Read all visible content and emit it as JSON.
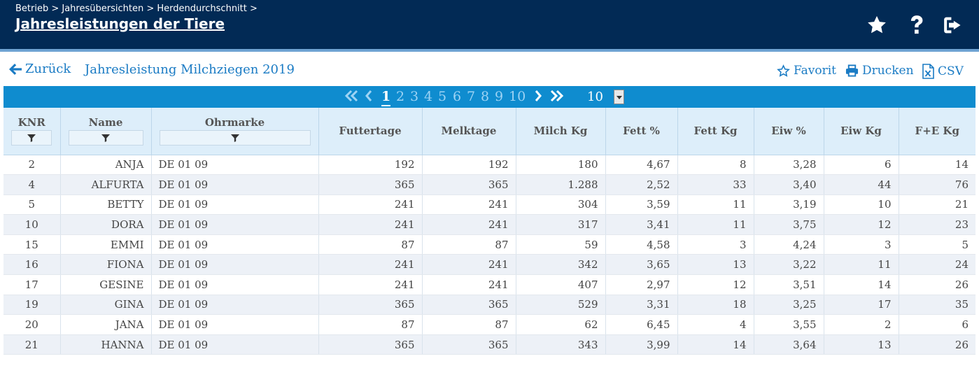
{
  "header": {
    "breadcrumb": "Betrieb > Jahresübersichten > Herdendurchschnitt >",
    "title": "Jahresleistungen der Tiere",
    "icons": [
      "star-icon",
      "question-icon",
      "logout-icon"
    ]
  },
  "actions": {
    "back_label": "Zurück",
    "subtitle": "Jahresleistung Milchziegen 2019",
    "favorite_label": "Favorit",
    "print_label": "Drucken",
    "csv_label": "CSV"
  },
  "pager": {
    "pages": [
      "1",
      "2",
      "3",
      "4",
      "5",
      "6",
      "7",
      "8",
      "9",
      "10"
    ],
    "current": "1",
    "page_size": "10"
  },
  "table": {
    "columns": [
      "KNR",
      "Name",
      "Ohrmarke",
      "Futtertage",
      "Melktage",
      "Milch Kg",
      "Fett %",
      "Fett Kg",
      "Eiw %",
      "Eiw Kg",
      "F+E Kg"
    ],
    "rows": [
      [
        "2",
        "ANJA",
        "DE 01 09",
        "192",
        "192",
        "180",
        "4,67",
        "8",
        "3,28",
        "6",
        "14"
      ],
      [
        "4",
        "ALFURTA",
        "DE 01 09",
        "365",
        "365",
        "1.288",
        "2,52",
        "33",
        "3,40",
        "44",
        "76"
      ],
      [
        "5",
        "BETTY",
        "DE 01 09",
        "241",
        "241",
        "304",
        "3,59",
        "11",
        "3,19",
        "10",
        "21"
      ],
      [
        "10",
        "DORA",
        "DE 01 09",
        "241",
        "241",
        "317",
        "3,41",
        "11",
        "3,75",
        "12",
        "23"
      ],
      [
        "15",
        "EMMI",
        "DE 01 09",
        "87",
        "87",
        "59",
        "4,58",
        "3",
        "4,24",
        "3",
        "5"
      ],
      [
        "16",
        "FIONA",
        "DE 01 09",
        "241",
        "241",
        "342",
        "3,65",
        "13",
        "3,22",
        "11",
        "24"
      ],
      [
        "17",
        "GESINE",
        "DE 01 09",
        "241",
        "241",
        "407",
        "2,97",
        "12",
        "3,51",
        "14",
        "26"
      ],
      [
        "19",
        "GINA",
        "DE 01 09",
        "365",
        "365",
        "529",
        "3,31",
        "18",
        "3,25",
        "17",
        "35"
      ],
      [
        "20",
        "JANA",
        "DE 01 09",
        "87",
        "87",
        "62",
        "6,45",
        "4",
        "3,55",
        "2",
        "6"
      ],
      [
        "21",
        "HANNA",
        "DE 01 09",
        "365",
        "365",
        "343",
        "3,99",
        "14",
        "3,64",
        "13",
        "26"
      ]
    ]
  },
  "colors": {
    "header_bg": "#022a55",
    "accent": "#1a7bc4",
    "pager_bg": "#0f8ccf",
    "header_row_bg": "#ddeefa",
    "alt_row_bg": "#edf1f7"
  }
}
